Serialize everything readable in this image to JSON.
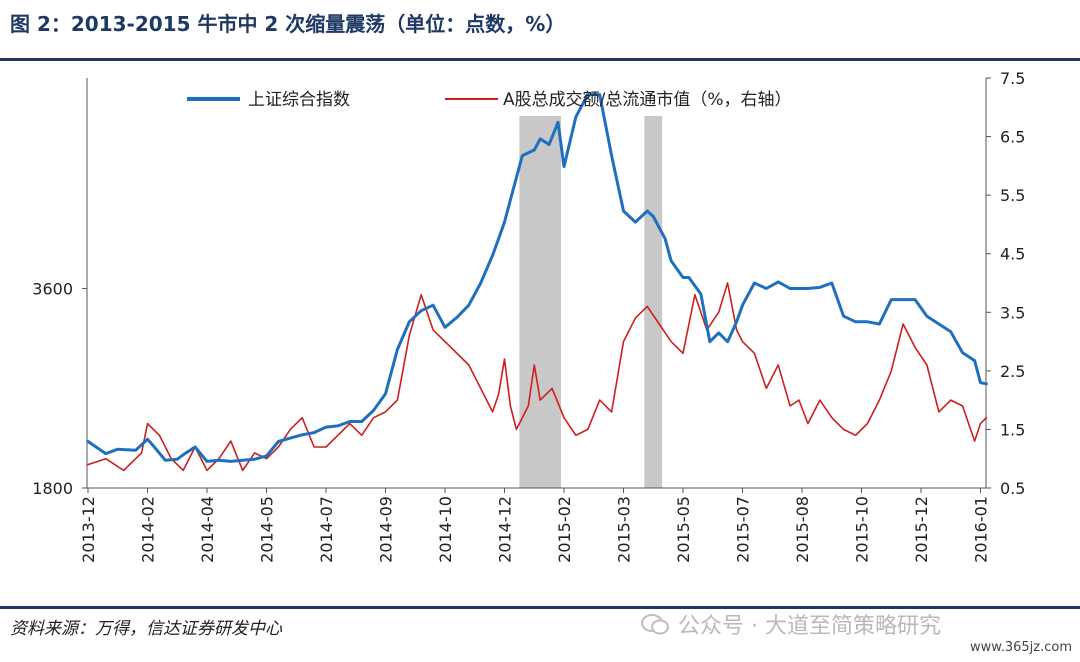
{
  "header": {
    "title": "图 2：2013-2015 牛市中 2 次缩量震荡（单位：点数，%）"
  },
  "footer": {
    "source": "资料来源：万得，信达证券研发中心",
    "watermark": "公众号 · 大道至简策略研究",
    "site": "www.365jz.com"
  },
  "colors": {
    "blue": "#1f6fbf",
    "red": "#cc1f1f",
    "band": "#c8c8c8",
    "axis": "#555555"
  },
  "chart_data": {
    "type": "line",
    "title": "",
    "x_tick_labels": [
      "2013-12",
      "2014-02",
      "2014-04",
      "2014-05",
      "2014-07",
      "2014-09",
      "2014-10",
      "2014-12",
      "2015-02",
      "2015-03",
      "2015-05",
      "2015-07",
      "2015-08",
      "2015-10",
      "2015-12",
      "2016-01"
    ],
    "left_axis": {
      "ylim": [
        1800,
        5500
      ],
      "tick_labels": [
        "1800",
        "3600"
      ],
      "ticks": [
        1800,
        3600
      ]
    },
    "right_axis": {
      "ylim": [
        0.5,
        7.5
      ],
      "tick_labels": [
        "0.5",
        "1.5",
        "2.5",
        "3.5",
        "4.5",
        "5.5",
        "6.5",
        "7.5"
      ],
      "ticks": [
        0.5,
        1.5,
        2.5,
        3.5,
        4.5,
        5.5,
        6.5,
        7.5
      ]
    },
    "x_range": [
      0,
      15.2
    ],
    "shaded_periods": [
      [
        7.25,
        7.95
      ],
      [
        9.35,
        9.65
      ]
    ],
    "series": [
      {
        "name": "上证综合指数",
        "axis": "left",
        "x": [
          0,
          0.3,
          0.5,
          0.8,
          1,
          1.1,
          1.3,
          1.5,
          1.6,
          1.8,
          2,
          2.2,
          2.4,
          2.6,
          2.8,
          3,
          3.2,
          3.4,
          3.6,
          3.8,
          4,
          4.2,
          4.4,
          4.6,
          4.8,
          5,
          5.2,
          5.4,
          5.6,
          5.8,
          6,
          6.2,
          6.4,
          6.6,
          6.8,
          6.9,
          7,
          7.1,
          7.2,
          7.3,
          7.5,
          7.6,
          7.75,
          7.9,
          8,
          8.2,
          8.4,
          8.6,
          8.8,
          9,
          9.2,
          9.4,
          9.5,
          9.6,
          9.7,
          9.8,
          10,
          10.1,
          10.3,
          10.45,
          10.6,
          10.75,
          10.9,
          11,
          11.2,
          11.4,
          11.6,
          11.8,
          11.95,
          12.1,
          12.3,
          12.5,
          12.7,
          12.9,
          13.1,
          13.3,
          13.5,
          13.7,
          13.9,
          14.1,
          14.3,
          14.5,
          14.7,
          14.9,
          15,
          15.1
        ],
        "values": [
          2220,
          2110,
          2150,
          2140,
          2240,
          2180,
          2050,
          2060,
          2100,
          2170,
          2040,
          2050,
          2040,
          2050,
          2060,
          2090,
          2220,
          2250,
          2280,
          2300,
          2350,
          2360,
          2400,
          2400,
          2500,
          2650,
          3050,
          3300,
          3400,
          3450,
          3250,
          3340,
          3450,
          3650,
          3900,
          4050,
          4200,
          4400,
          4600,
          4800,
          4850,
          4950,
          4900,
          5100,
          4700,
          5150,
          5350,
          5350,
          4800,
          4300,
          4200,
          4300,
          4250,
          4150,
          4050,
          3850,
          3700,
          3700,
          3550,
          3120,
          3200,
          3120,
          3300,
          3450,
          3650,
          3600,
          3660,
          3600,
          3600,
          3600,
          3610,
          3650,
          3350,
          3300,
          3300,
          3280,
          3500,
          3500,
          3500,
          3350,
          3280,
          3210,
          3020,
          2950,
          2750,
          2740
        ]
      },
      {
        "name": "A股总成交额/总流通市值（%，右轴）",
        "axis": "right",
        "x": [
          0,
          0.3,
          0.6,
          0.9,
          1,
          1.2,
          1.4,
          1.6,
          1.8,
          2,
          2.2,
          2.4,
          2.6,
          2.8,
          3,
          3.2,
          3.4,
          3.6,
          3.8,
          4,
          4.2,
          4.4,
          4.6,
          4.8,
          5,
          5.2,
          5.4,
          5.6,
          5.8,
          6,
          6.2,
          6.4,
          6.6,
          6.8,
          6.9,
          7,
          7.1,
          7.2,
          7.4,
          7.5,
          7.6,
          7.8,
          8,
          8.2,
          8.4,
          8.6,
          8.8,
          9,
          9.2,
          9.4,
          9.6,
          9.8,
          10,
          10.2,
          10.4,
          10.6,
          10.75,
          10.9,
          11,
          11.2,
          11.4,
          11.6,
          11.8,
          11.95,
          12.1,
          12.3,
          12.5,
          12.7,
          12.9,
          13.1,
          13.3,
          13.5,
          13.7,
          13.9,
          14.1,
          14.3,
          14.5,
          14.7,
          14.9,
          15,
          15.1
        ],
        "values": [
          0.9,
          1.0,
          0.8,
          1.1,
          1.6,
          1.4,
          1.0,
          0.8,
          1.2,
          0.8,
          1.0,
          1.3,
          0.8,
          1.1,
          1.0,
          1.2,
          1.5,
          1.7,
          1.2,
          1.2,
          1.4,
          1.6,
          1.4,
          1.7,
          1.8,
          2.0,
          3.1,
          3.8,
          3.2,
          3.0,
          2.8,
          2.6,
          2.2,
          1.8,
          2.1,
          2.7,
          1.9,
          1.5,
          1.9,
          2.6,
          2.0,
          2.2,
          1.7,
          1.4,
          1.5,
          2.0,
          1.8,
          3.0,
          3.4,
          3.6,
          3.3,
          3.0,
          2.8,
          3.8,
          3.2,
          3.5,
          4.0,
          3.2,
          3.0,
          2.8,
          2.2,
          2.6,
          1.9,
          2.0,
          1.6,
          2.0,
          1.7,
          1.5,
          1.4,
          1.6,
          2.0,
          2.5,
          3.3,
          2.9,
          2.6,
          1.8,
          2.0,
          1.9,
          1.3,
          1.6,
          1.7
        ]
      }
    ],
    "legend": {
      "placement": "top",
      "entries": [
        "上证综合指数",
        "A股总成交额/总流通市值（%，右轴）"
      ]
    }
  }
}
